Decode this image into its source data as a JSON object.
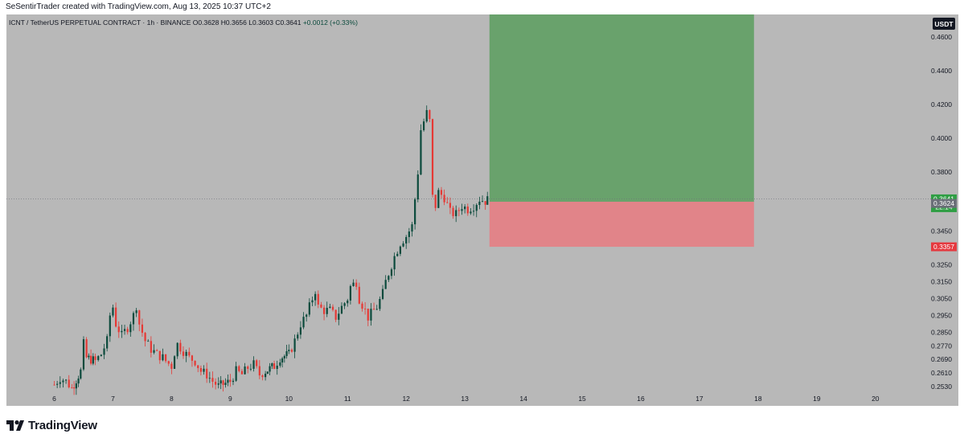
{
  "header": {
    "credit": "SeSentirTrader created with TradingView.com, Aug 13, 2025 10:37 UTC+2"
  },
  "footer": {
    "brand": "TradingView"
  },
  "colors": {
    "background": "#b8b8b8",
    "up": "#0b4a3c",
    "down": "#e53935",
    "profit_zone": "#5a9e5e",
    "loss_zone": "#e87a80",
    "last_price_label": "#2f9e44",
    "stop_label": "#e5393f",
    "entry_label": "#6b6f78"
  },
  "chart_data": {
    "type": "candlestick",
    "title": "ICNT / TetherUS PERPETUAL CONTRACT · 1h · BINANCE",
    "ohlc": {
      "open": "O0.3628",
      "high": "H0.3656",
      "low": "L0.3603",
      "close": "C0.3641",
      "change": "+0.0012 (+0.33%)"
    },
    "currency": "USDT",
    "x_ticks": [
      "6",
      "7",
      "8",
      "9",
      "10",
      "11",
      "12",
      "13",
      "14",
      "15",
      "16",
      "17",
      "18",
      "19",
      "20"
    ],
    "y_ticks": [
      "0.2530",
      "0.2610",
      "0.2690",
      "0.2770",
      "0.2850",
      "0.2950",
      "0.3050",
      "0.3150",
      "0.3250",
      "0.3357",
      "0.3450",
      "0.3624",
      "0.3641",
      "0.3800",
      "0.4000",
      "0.4200",
      "0.4400",
      "0.4600"
    ],
    "y_axis_labels": [
      "0.4600",
      "0.4400",
      "0.4200",
      "0.4000",
      "0.3800",
      "0.3450",
      "0.3250",
      "0.3150",
      "0.3050",
      "0.2950",
      "0.2850",
      "0.2770",
      "0.2690",
      "0.2610",
      "0.2530"
    ],
    "last_price": {
      "value": "0.3641",
      "countdown": "22:14"
    },
    "entry_price": "0.3624",
    "stop_price": "0.3357",
    "target_price": 0.4735,
    "position": {
      "type": "long",
      "entry": 0.3624,
      "stop": 0.3357,
      "target": 0.4735,
      "start_day": 13.42,
      "end_day": 17.93
    },
    "price_path": [
      [
        6.0,
        0.254
      ],
      [
        6.1,
        0.258
      ],
      [
        6.2,
        0.256
      ],
      [
        6.3,
        0.252
      ],
      [
        6.45,
        0.262
      ],
      [
        6.5,
        0.278
      ],
      [
        6.55,
        0.27
      ],
      [
        6.7,
        0.268
      ],
      [
        6.8,
        0.272
      ],
      [
        6.9,
        0.28
      ],
      [
        6.95,
        0.295
      ],
      [
        7.0,
        0.3
      ],
      [
        7.05,
        0.29
      ],
      [
        7.15,
        0.283
      ],
      [
        7.25,
        0.288
      ],
      [
        7.35,
        0.295
      ],
      [
        7.4,
        0.301
      ],
      [
        7.45,
        0.29
      ],
      [
        7.55,
        0.28
      ],
      [
        7.65,
        0.275
      ],
      [
        7.75,
        0.272
      ],
      [
        7.85,
        0.27
      ],
      [
        7.9,
        0.268
      ],
      [
        8.0,
        0.265
      ],
      [
        8.05,
        0.273
      ],
      [
        8.1,
        0.278
      ],
      [
        8.2,
        0.274
      ],
      [
        8.3,
        0.27
      ],
      [
        8.4,
        0.268
      ],
      [
        8.5,
        0.262
      ],
      [
        8.6,
        0.26
      ],
      [
        8.7,
        0.256
      ],
      [
        8.8,
        0.253
      ],
      [
        9.0,
        0.256
      ],
      [
        9.1,
        0.262
      ],
      [
        9.2,
        0.26
      ],
      [
        9.3,
        0.264
      ],
      [
        9.4,
        0.266
      ],
      [
        9.5,
        0.26
      ],
      [
        9.6,
        0.262
      ],
      [
        9.75,
        0.265
      ],
      [
        9.85,
        0.27
      ],
      [
        10.0,
        0.272
      ],
      [
        10.1,
        0.28
      ],
      [
        10.2,
        0.29
      ],
      [
        10.3,
        0.295
      ],
      [
        10.4,
        0.305
      ],
      [
        10.45,
        0.31
      ],
      [
        10.5,
        0.3
      ],
      [
        10.6,
        0.298
      ],
      [
        10.7,
        0.298
      ],
      [
        10.8,
        0.294
      ],
      [
        10.9,
        0.3
      ],
      [
        11.0,
        0.305
      ],
      [
        11.05,
        0.312
      ],
      [
        11.15,
        0.315
      ],
      [
        11.2,
        0.305
      ],
      [
        11.3,
        0.298
      ],
      [
        11.35,
        0.294
      ],
      [
        11.4,
        0.296
      ],
      [
        11.5,
        0.3
      ],
      [
        11.6,
        0.308
      ],
      [
        11.65,
        0.315
      ],
      [
        11.7,
        0.32
      ],
      [
        11.8,
        0.33
      ],
      [
        11.9,
        0.338
      ],
      [
        12.0,
        0.342
      ],
      [
        12.1,
        0.348
      ],
      [
        12.2,
        0.38
      ],
      [
        12.25,
        0.405
      ],
      [
        12.35,
        0.415
      ],
      [
        12.4,
        0.41
      ],
      [
        12.45,
        0.365
      ],
      [
        12.5,
        0.36
      ],
      [
        12.55,
        0.368
      ],
      [
        12.65,
        0.365
      ],
      [
        12.75,
        0.356
      ],
      [
        12.85,
        0.355
      ],
      [
        12.95,
        0.36
      ],
      [
        13.05,
        0.358
      ],
      [
        13.15,
        0.36
      ],
      [
        13.25,
        0.364
      ],
      [
        13.35,
        0.3628
      ],
      [
        13.42,
        0.3641
      ]
    ]
  }
}
